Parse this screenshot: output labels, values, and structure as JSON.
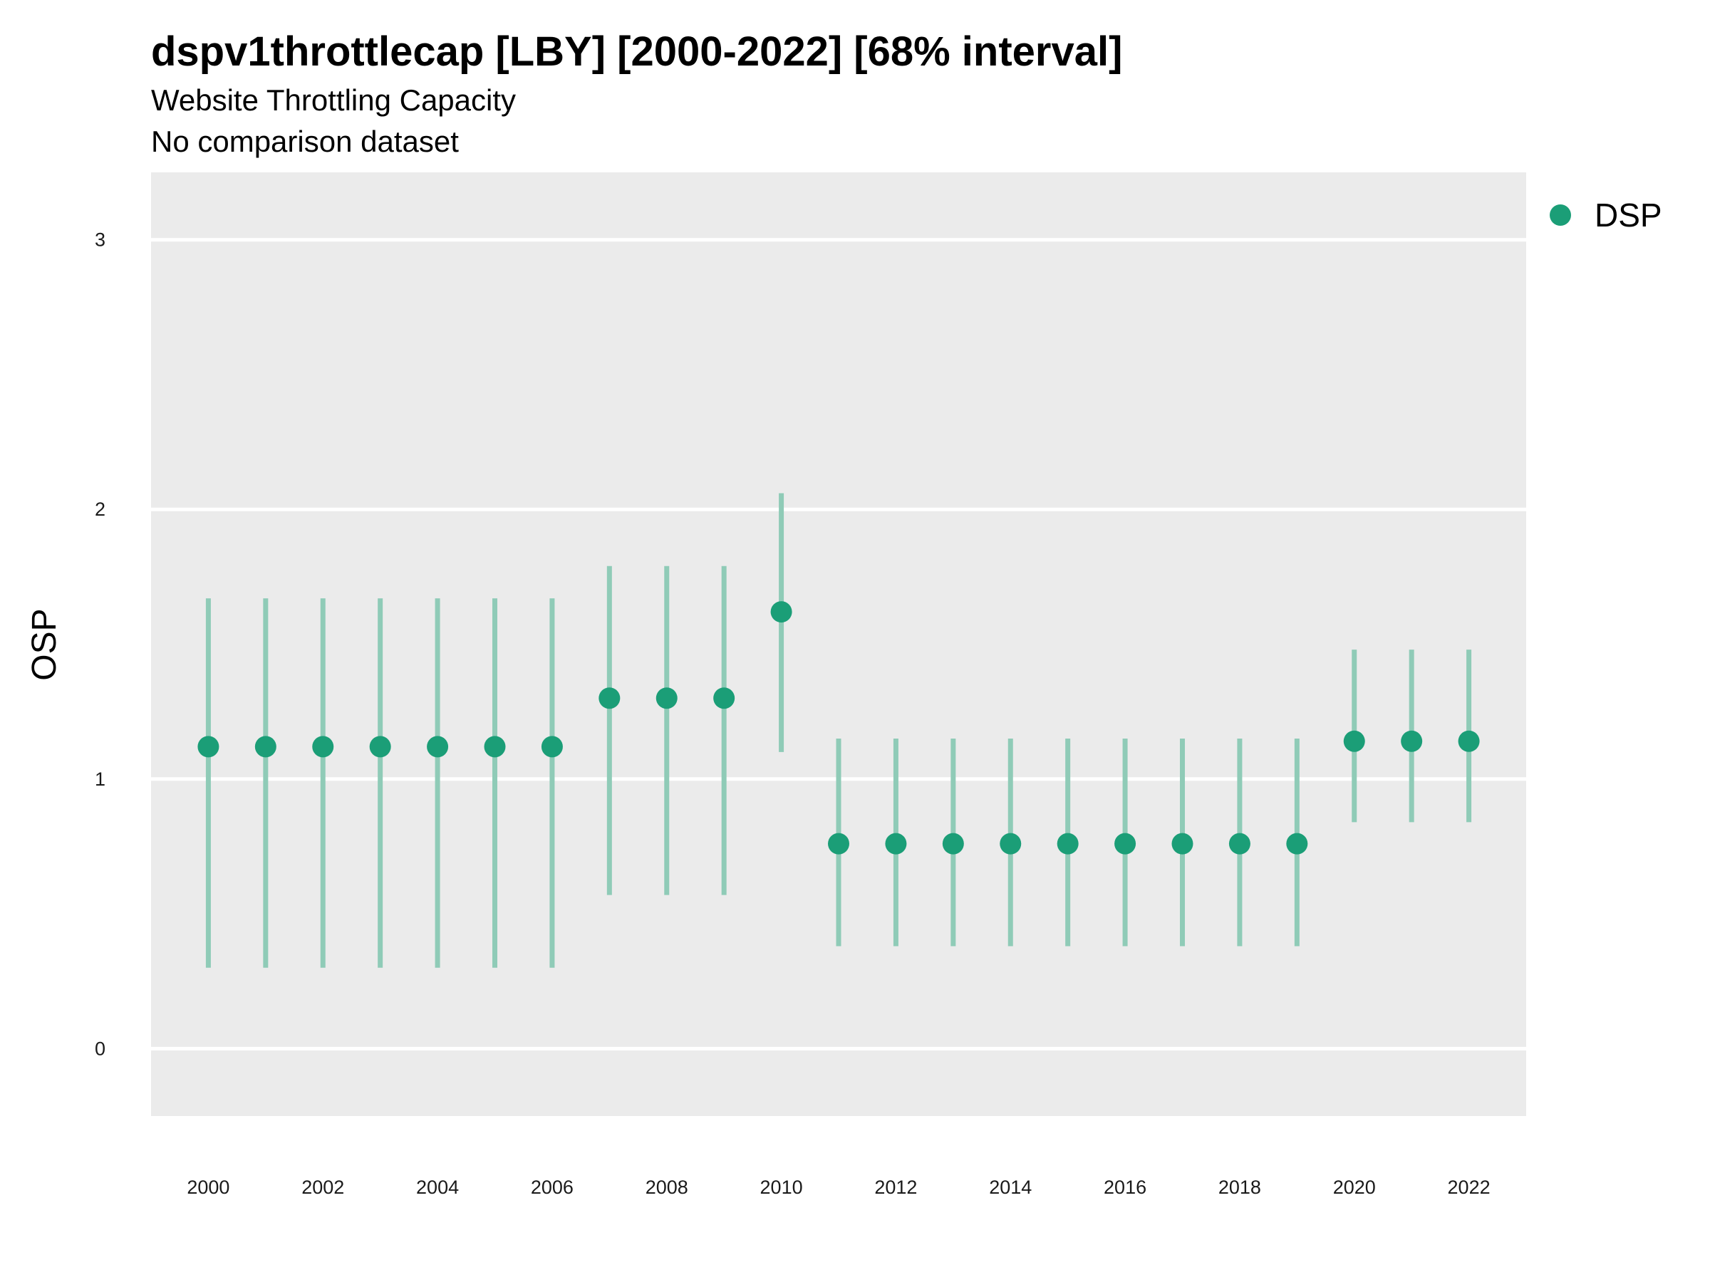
{
  "chart_data": {
    "type": "scatter",
    "title": "dspv1throttlecap [LBY] [2000-2022] [68% interval]",
    "subtitle": "Website Throttling Capacity",
    "caption_line": "No comparison dataset",
    "ylabel": "OSP",
    "xlabel": "",
    "ylim": [
      -0.25,
      3.25
    ],
    "xlim": [
      1999,
      2023
    ],
    "y_ticks": [
      0,
      1,
      2,
      3
    ],
    "x_ticks": [
      2000,
      2002,
      2004,
      2006,
      2008,
      2010,
      2012,
      2014,
      2016,
      2018,
      2020,
      2022
    ],
    "grid": true,
    "legend_position": "right",
    "colors": {
      "point": "#1b9e77",
      "interval": "#8fcbb7",
      "panel": "#ebebeb",
      "grid": "#ffffff"
    },
    "series": [
      {
        "name": "DSP",
        "x": [
          2000,
          2001,
          2002,
          2003,
          2004,
          2005,
          2006,
          2007,
          2008,
          2009,
          2010,
          2011,
          2012,
          2013,
          2014,
          2015,
          2016,
          2017,
          2018,
          2019,
          2020,
          2021,
          2022
        ],
        "y": [
          1.12,
          1.12,
          1.12,
          1.12,
          1.12,
          1.12,
          1.12,
          1.3,
          1.3,
          1.3,
          1.62,
          0.76,
          0.76,
          0.76,
          0.76,
          0.76,
          0.76,
          0.76,
          0.76,
          0.76,
          1.14,
          1.14,
          1.14
        ],
        "lower": [
          0.3,
          0.3,
          0.3,
          0.3,
          0.3,
          0.3,
          0.3,
          0.57,
          0.57,
          0.57,
          1.1,
          0.38,
          0.38,
          0.38,
          0.38,
          0.38,
          0.38,
          0.38,
          0.38,
          0.38,
          0.84,
          0.84,
          0.84
        ],
        "upper": [
          1.67,
          1.67,
          1.67,
          1.67,
          1.67,
          1.67,
          1.67,
          1.79,
          1.79,
          1.79,
          2.06,
          1.15,
          1.15,
          1.15,
          1.15,
          1.15,
          1.15,
          1.15,
          1.15,
          1.15,
          1.48,
          1.48,
          1.48
        ]
      }
    ]
  }
}
